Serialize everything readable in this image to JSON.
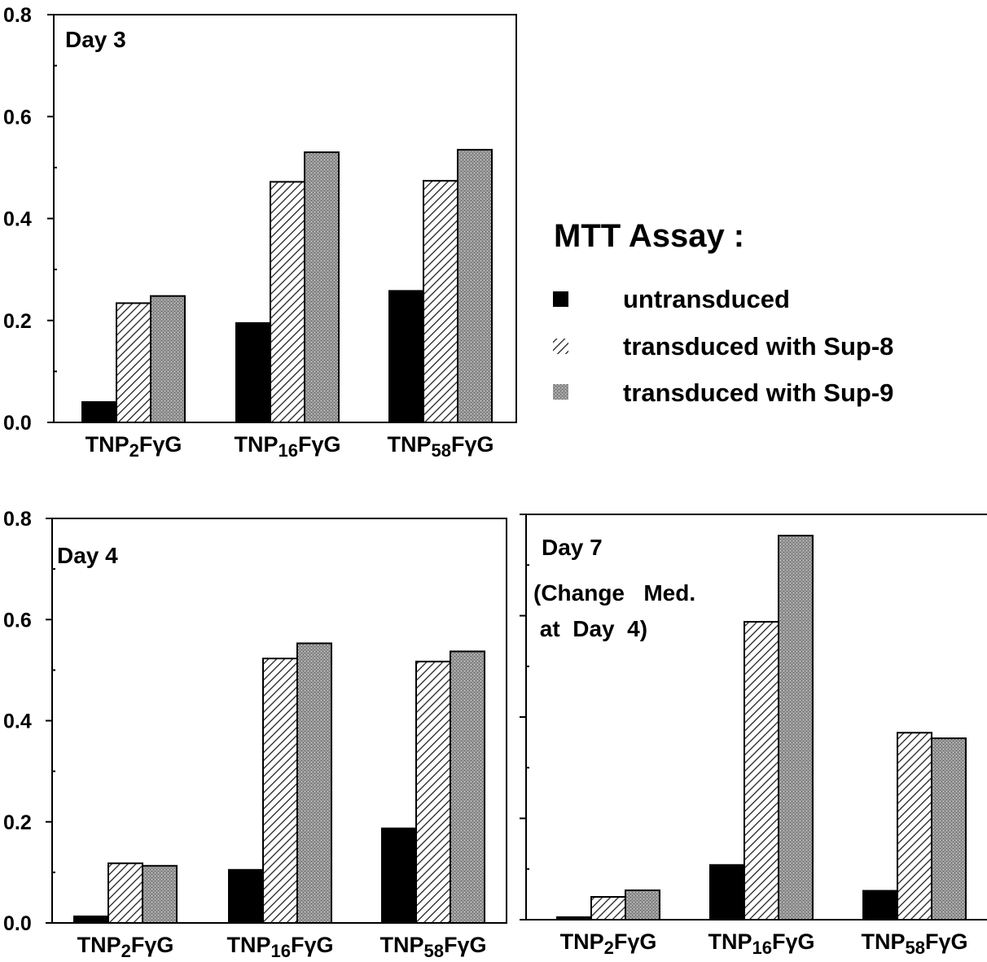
{
  "colors": {
    "untransduced": "#000000",
    "sup8_stroke": "#222222",
    "sup9_fill": "#8c8c8c",
    "axis": "#000000"
  },
  "chart_data": [
    {
      "type": "bar",
      "title": "Day 3",
      "subtitle": "",
      "categories": [
        "TNP2FγG",
        "TNP16FγG",
        "TNP58FγG"
      ],
      "series": [
        {
          "name": "untransduced",
          "values": [
            0.04,
            0.195,
            0.258
          ]
        },
        {
          "name": "transduced with Sup-8",
          "values": [
            0.234,
            0.472,
            0.474
          ]
        },
        {
          "name": "transduced with Sup-9",
          "values": [
            0.248,
            0.53,
            0.535
          ]
        }
      ],
      "ylim": [
        0,
        0.8
      ],
      "yticks": [
        "0.0",
        "0.2",
        "0.4",
        "0.6",
        "0.8"
      ],
      "xlabel": "",
      "ylabel": "",
      "grid": false
    },
    {
      "type": "bar",
      "title": "Day 4",
      "subtitle": "",
      "categories": [
        "TNP2FγG",
        "TNP16FγG",
        "TNP58FγG"
      ],
      "series": [
        {
          "name": "untransduced",
          "values": [
            0.013,
            0.105,
            0.187
          ]
        },
        {
          "name": "transduced with Sup-8",
          "values": [
            0.118,
            0.523,
            0.517
          ]
        },
        {
          "name": "transduced with Sup-9",
          "values": [
            0.113,
            0.553,
            0.537
          ]
        }
      ],
      "ylim": [
        0,
        0.8
      ],
      "yticks": [
        "0.0",
        "0.2",
        "0.4",
        "0.6",
        "0.8"
      ],
      "xlabel": "",
      "ylabel": "",
      "grid": false
    },
    {
      "type": "bar",
      "title": "Day 7",
      "subtitle": "(Change   Med.\n at  Day  4)",
      "categories": [
        "TNP2FγG",
        "TNP16FγG",
        "TNP58FγG"
      ],
      "series": [
        {
          "name": "untransduced",
          "values": [
            0.005,
            0.108,
            0.057
          ]
        },
        {
          "name": "transduced with Sup-8",
          "values": [
            0.045,
            0.588,
            0.369
          ]
        },
        {
          "name": "transduced with Sup-9",
          "values": [
            0.058,
            0.758,
            0.358
          ]
        }
      ],
      "ylim": [
        0,
        0.8
      ],
      "yticks": [],
      "xlabel": "",
      "ylabel": "",
      "grid": false
    }
  ],
  "legend": {
    "title": "MTT Assay :",
    "items": [
      "untransduced",
      "transduced with Sup-8",
      "transduced with Sup-9"
    ],
    "placement": "right of top panel"
  }
}
